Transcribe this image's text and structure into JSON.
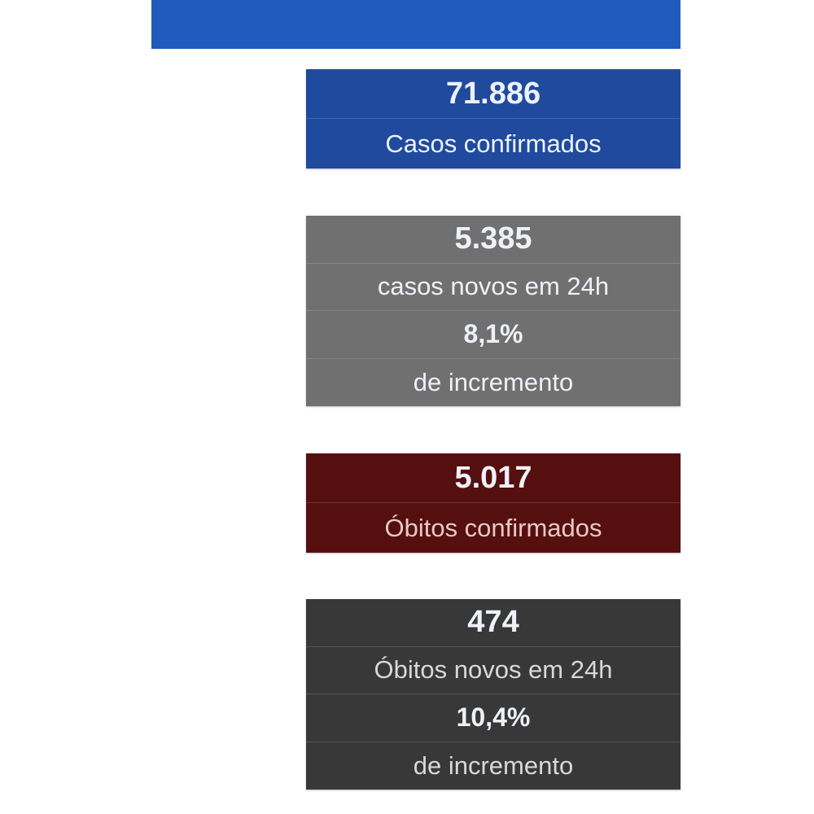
{
  "colors": {
    "top_bar": "#1f5bbd",
    "casos": "#1f4a9e",
    "novos": "#707070",
    "obitos": "#550f0f",
    "obitos_novos": "#383838"
  },
  "cards": {
    "casos_confirmados": {
      "value": "71.886",
      "label": "Casos confirmados"
    },
    "casos_novos": {
      "value": "5.385",
      "label": "casos novos em 24h",
      "percent": "8,1%",
      "percent_label": "de incremento"
    },
    "obitos_confirmados": {
      "value": "5.017",
      "label": "Óbitos confirmados"
    },
    "obitos_novos": {
      "value": "474",
      "label": "Óbitos novos em 24h",
      "percent": "10,4%",
      "percent_label": "de incremento"
    }
  }
}
